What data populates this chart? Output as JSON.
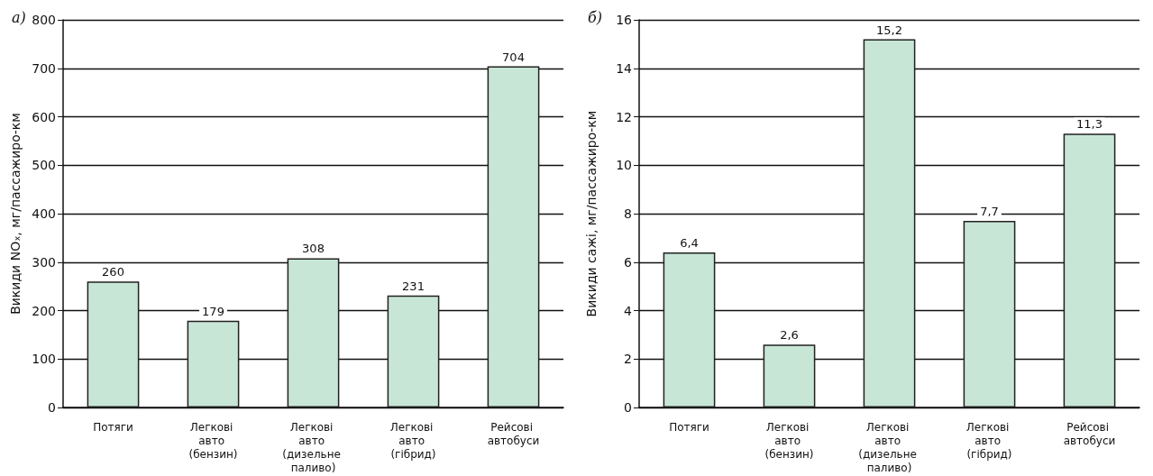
{
  "chart_data": [
    {
      "type": "bar",
      "title": "а)",
      "ylabel": "Викиди NOₓ, мг/пассажиро-км",
      "categories": [
        "Потяги",
        "Легкові авто (бензин)",
        "Легкові авто (дизельне паливо)",
        "Легкові авто (гібрид)",
        "Рейсові автобуси"
      ],
      "values": [
        260,
        179,
        308,
        231,
        704
      ],
      "color": "#c8e6d6",
      "ylim": [
        0,
        800
      ],
      "yticks": [
        0,
        100,
        200,
        300,
        400,
        500,
        600,
        700,
        800
      ],
      "grid": "y",
      "data_labels": true
    },
    {
      "type": "bar",
      "title": "б)",
      "ylabel": "Викиди сажі, мг/пассажиро-км",
      "categories": [
        "Потяги",
        "Легкові авто (бензин)",
        "Легкові авто (дизельне паливо)",
        "Легкові авто (гібрид)",
        "Рейсові автобуси"
      ],
      "values": [
        6.4,
        2.6,
        15.2,
        7.7,
        11.3
      ],
      "value_labels": [
        "6,4",
        "2,6",
        "15,2",
        "7,7",
        "11,3"
      ],
      "color": "#c8e6d6",
      "ylim": [
        0,
        16
      ],
      "yticks": [
        0,
        2,
        4,
        6,
        8,
        10,
        12,
        14,
        16
      ],
      "grid": "y"
    }
  ]
}
